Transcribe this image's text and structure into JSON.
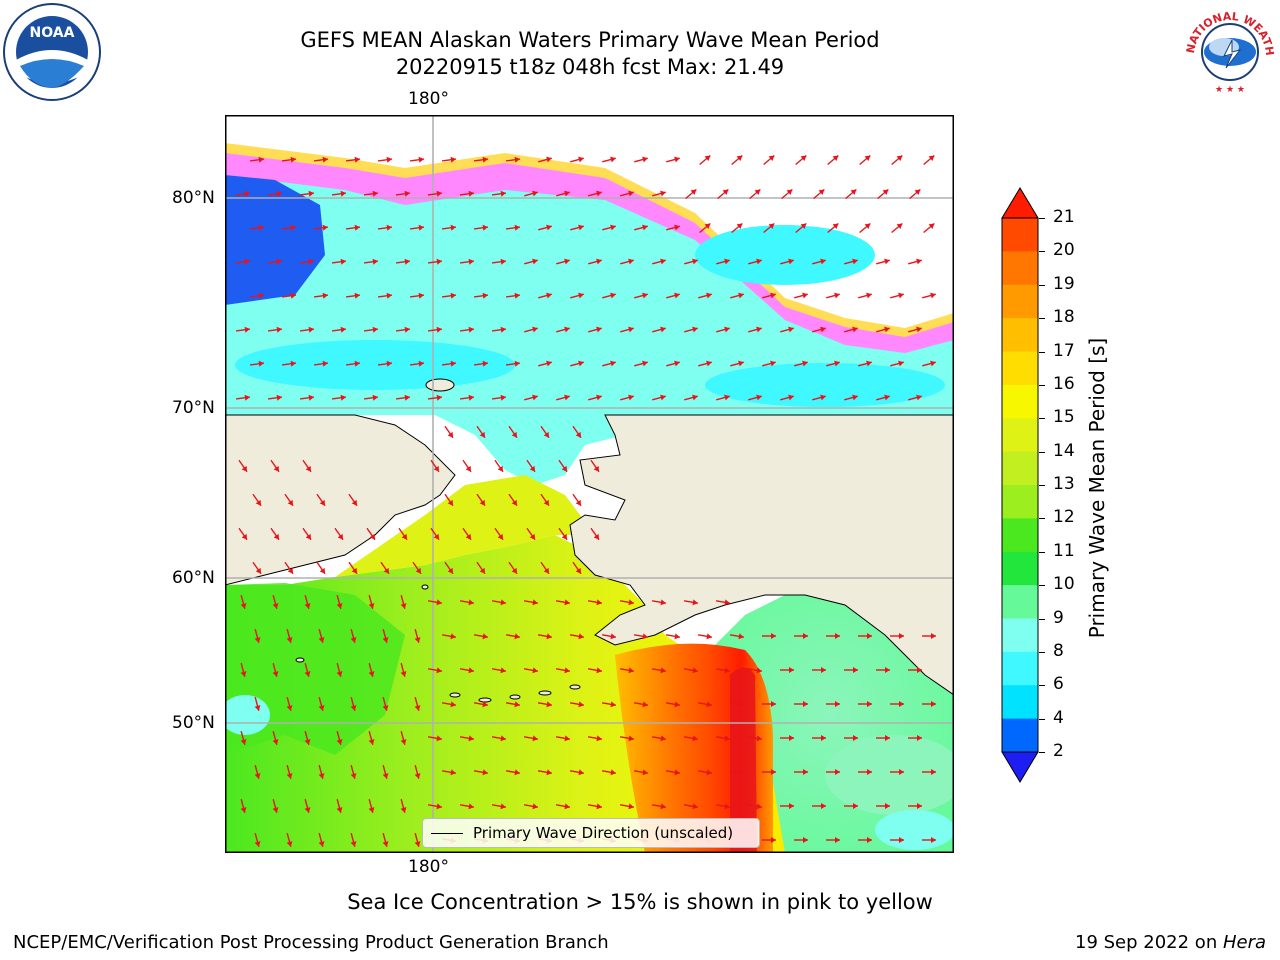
{
  "header": {
    "title_line1": "GEFS MEAN Alaskan Waters Primary Wave Mean Period",
    "title_line2": "20220915 t18z 048h fcst   Max: 21.49"
  },
  "logos": {
    "noaa": {
      "center_text": "NOAA",
      "ring_text": "NATIONAL OCEANIC AND ATMOSPHERIC ADMINISTRATION · U.S. DEPARTMENT OF COMMERCE"
    },
    "nws": {
      "ring_text": "NATIONAL WEATHER SERVICE"
    }
  },
  "map": {
    "lon_labels": [
      "180°",
      "180°"
    ],
    "lat_labels": [
      "80°N",
      "70°N",
      "60°N",
      "50°N"
    ],
    "legend_text": "Primary Wave Direction (unscaled)",
    "colors": {
      "land": "#efecdc",
      "ocean_low": "#1e5cf2",
      "ice": "#ff66ff",
      "arrow": "#e8141a",
      "grid": "#b0b0b0"
    }
  },
  "colorbar": {
    "label": "Primary Wave Mean Period [s]",
    "ticks": [
      "21",
      "20",
      "19",
      "18",
      "17",
      "16",
      "15",
      "14",
      "13",
      "12",
      "11",
      "10",
      "9",
      "8",
      "6",
      "4",
      "2"
    ],
    "colors": [
      "#ff1c00",
      "#ff4a00",
      "#ff7700",
      "#ff9a00",
      "#ffbe00",
      "#ffdd00",
      "#f7f700",
      "#dff215",
      "#c1ef1f",
      "#9cee1e",
      "#4be81f",
      "#22e63b",
      "#66f99a",
      "#7efff0",
      "#40f8ff",
      "#00e2ff",
      "#0068ff",
      "#1e1ef2"
    ]
  },
  "caption": "Sea Ice Concentration > 15% is shown in pink to yellow",
  "footer": {
    "left": "NCEP/EMC/Verification Post Processing Product Generation Branch",
    "right_date": "19 Sep 2022 on ",
    "right_machine": "Hera"
  }
}
